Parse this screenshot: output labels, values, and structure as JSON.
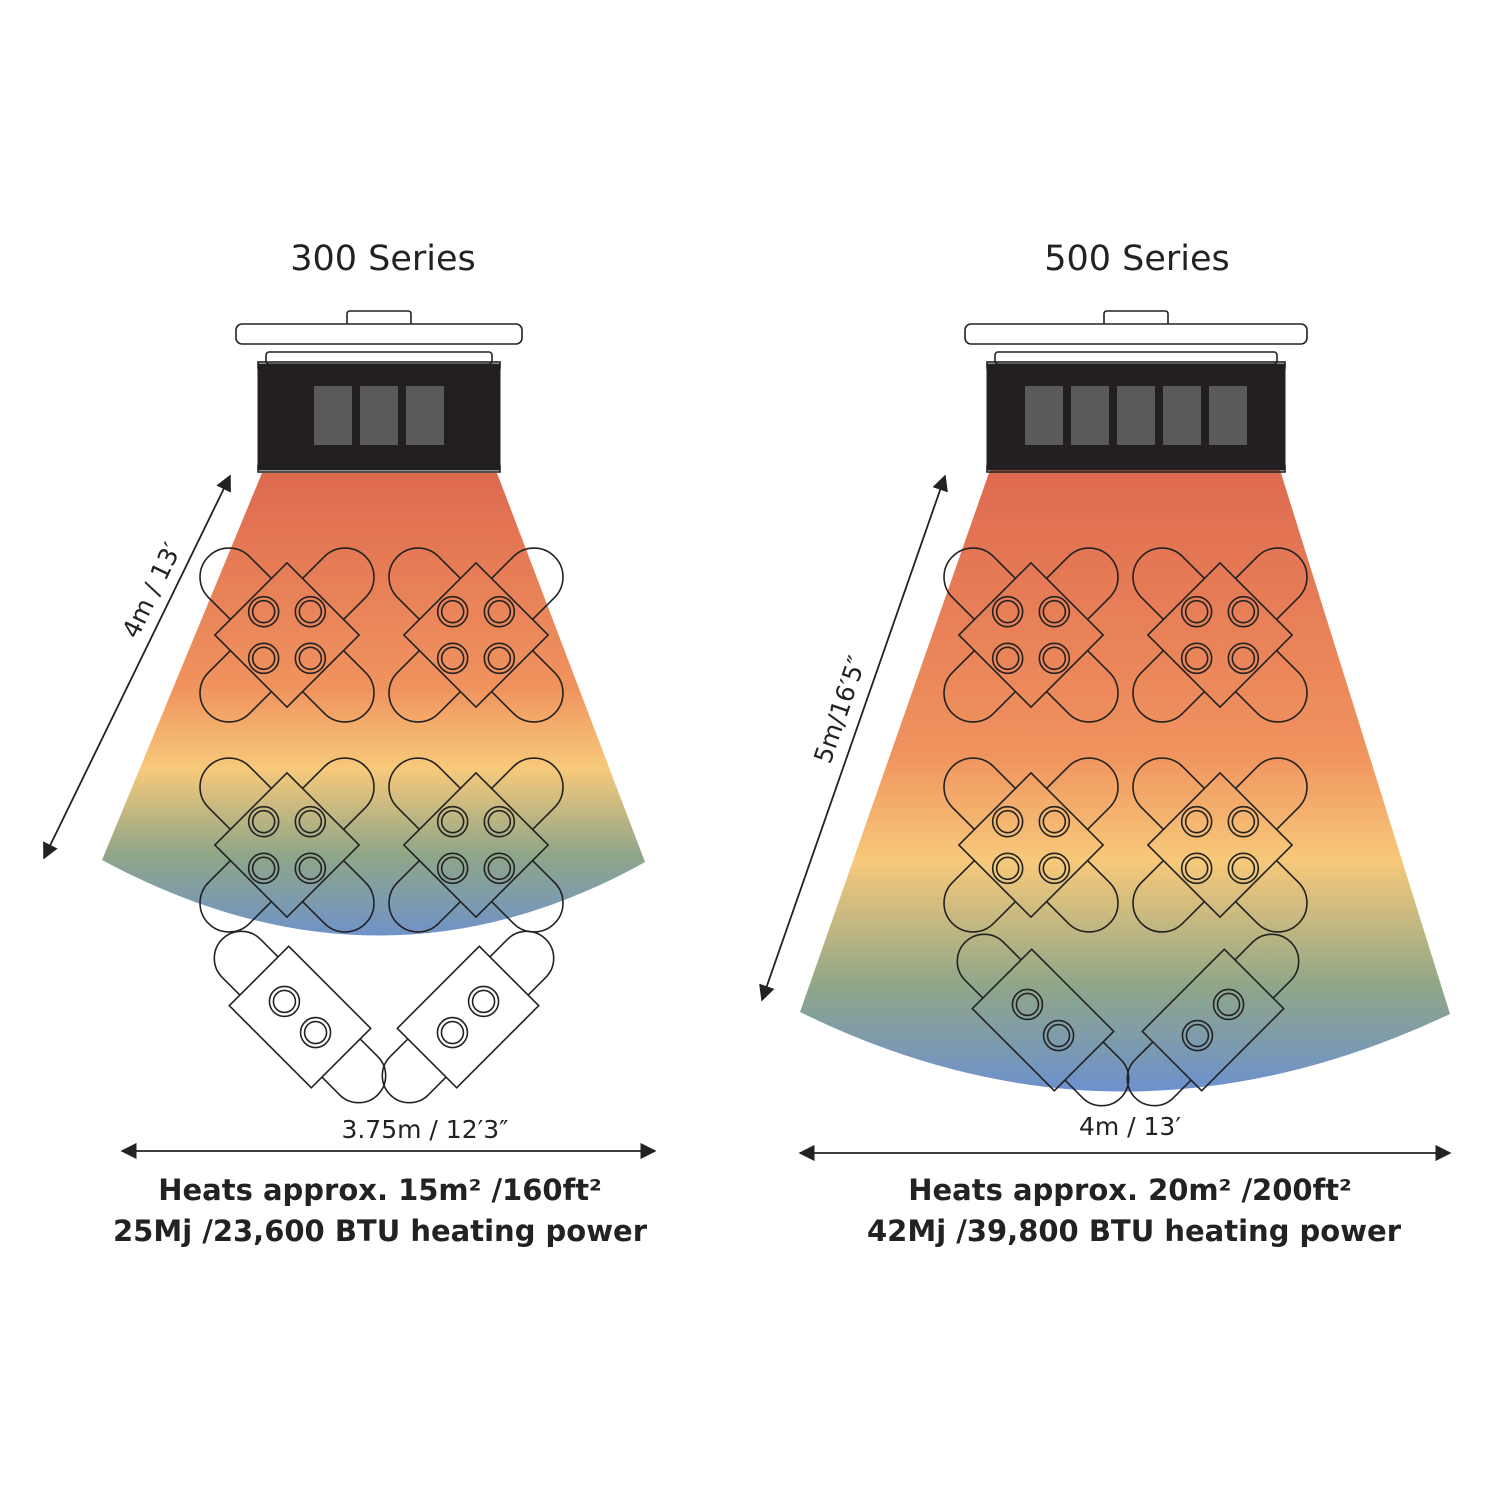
{
  "colors": {
    "heat_top": "#de6a50",
    "heat_mid": "#f0935e",
    "heat_yellow": "#f7c97a",
    "heat_green": "#8fa688",
    "heat_blue": "#6a8fd4",
    "heater_body": "#231f20",
    "heater_panel": "#5a5a5a"
  },
  "series300": {
    "title": "300 Series",
    "depth_label": "4m / 13′",
    "width_label": "3.75m / 12′3″",
    "spec_line1": "Heats approx. 15m²  /160ft²",
    "spec_line2": "25Mj /23,600 BTU heating power",
    "panels": 3
  },
  "series500": {
    "title": "500 Series",
    "depth_label": "5m/16′5″",
    "width_label": "4m / 13′",
    "spec_line1": "Heats approx. 20m² /200ft²",
    "spec_line2": "42Mj /39,800 BTU heating power",
    "panels": 5
  }
}
